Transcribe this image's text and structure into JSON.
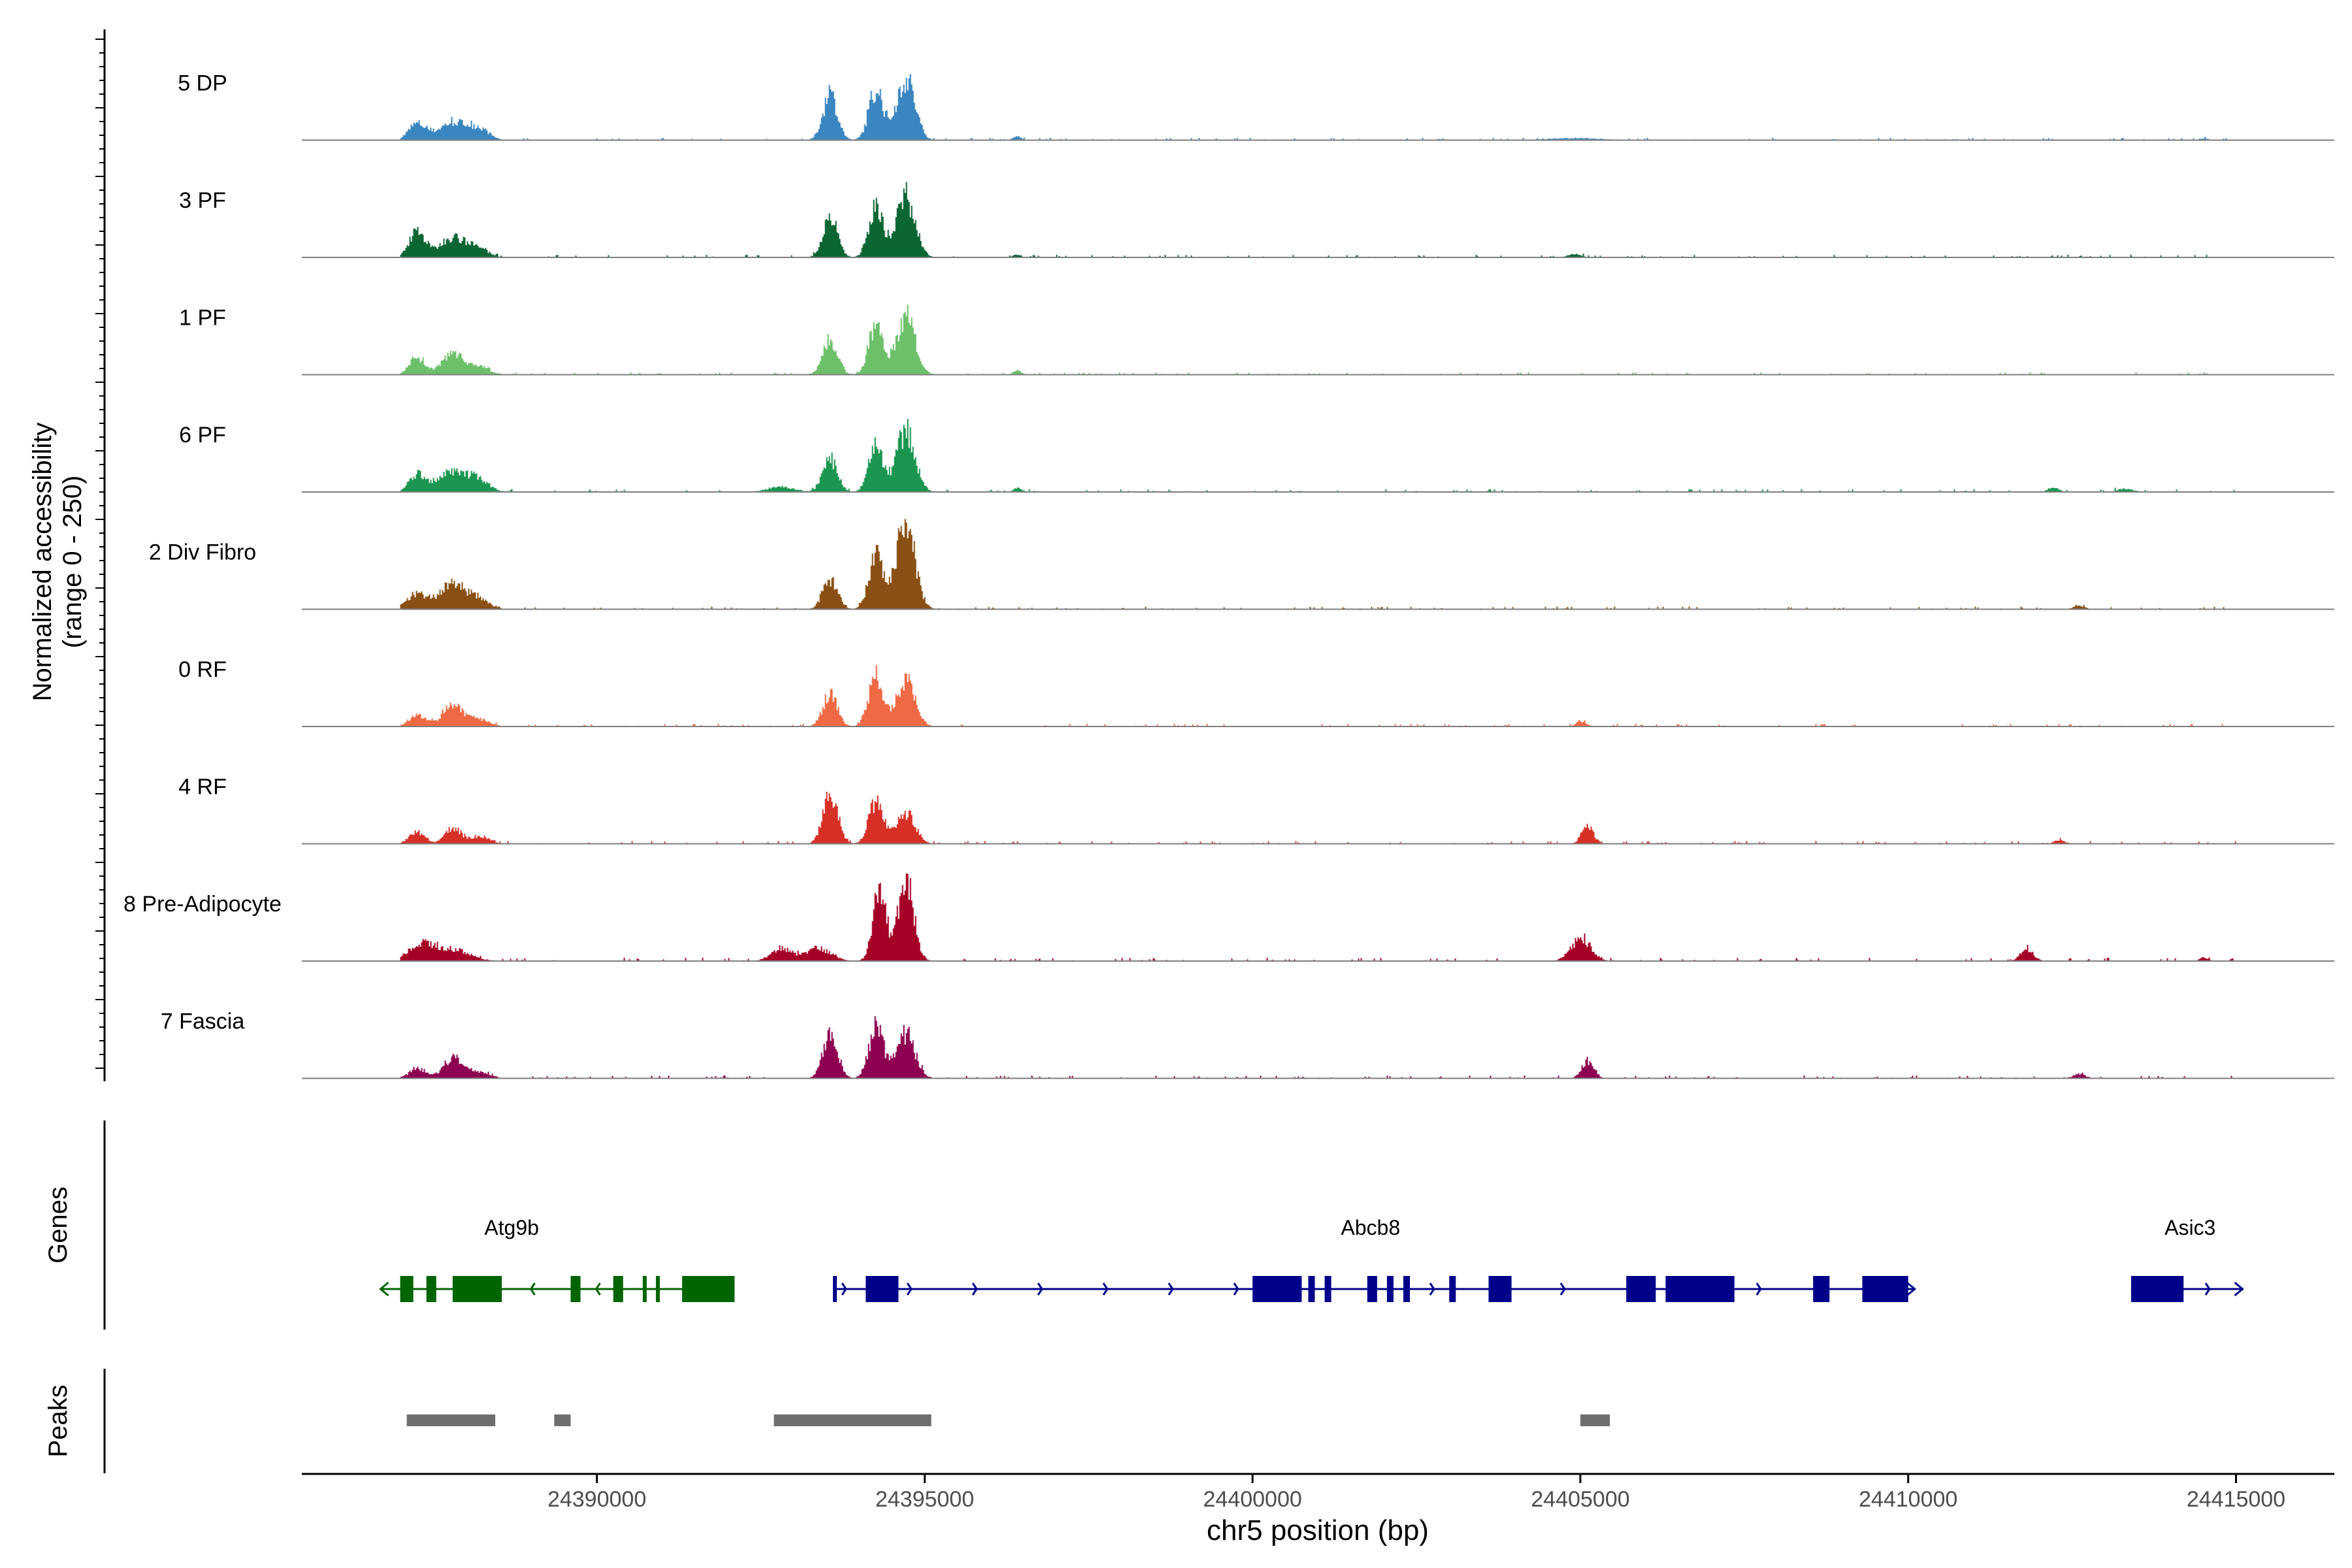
{
  "chart_data": {
    "type": "area",
    "title": "",
    "ylabel_line1": "Normalized accessibility",
    "ylabel_line2": "(range 0 - 250)",
    "y_range": [
      0,
      250
    ],
    "xlabel": "chr5 position (bp)",
    "xlim": [
      24385500,
      24416500
    ],
    "x_ticks": [
      24390000,
      24395000,
      24400000,
      24405000,
      24410000,
      24415000
    ],
    "x_tick_labels": [
      "24390000",
      "24395000",
      "24400000",
      "24405000",
      "24410000",
      "24415000"
    ],
    "genes_label": "Genes",
    "peaks_label": "Peaks",
    "tracks": [
      {
        "name": "5 DP",
        "color": "#3a86c0",
        "peaks": [
          [
            24387250,
            0.25,
            130
          ],
          [
            24387800,
            0.28,
            220
          ],
          [
            24388200,
            0.16,
            150
          ],
          [
            24393550,
            0.72,
            110
          ],
          [
            24394250,
            0.78,
            110
          ],
          [
            24394700,
            0.98,
            140
          ],
          [
            24396400,
            0.06,
            60
          ],
          [
            24404900,
            0.03,
            400
          ],
          [
            24414500,
            0.03,
            60
          ]
        ],
        "noise": 0.018
      },
      {
        "name": "3 PF",
        "color": "#0c6633",
        "peaks": [
          [
            24387250,
            0.42,
            120
          ],
          [
            24387800,
            0.32,
            200
          ],
          [
            24388200,
            0.12,
            150
          ],
          [
            24393550,
            0.65,
            110
          ],
          [
            24394250,
            0.8,
            110
          ],
          [
            24394700,
            0.97,
            140
          ],
          [
            24396400,
            0.04,
            60
          ],
          [
            24404900,
            0.05,
            100
          ]
        ],
        "noise": 0.02
      },
      {
        "name": "1 PF",
        "color": "#6cc06a",
        "peaks": [
          [
            24387250,
            0.28,
            120
          ],
          [
            24387800,
            0.36,
            160
          ],
          [
            24388200,
            0.12,
            150
          ],
          [
            24393550,
            0.55,
            110
          ],
          [
            24394250,
            0.78,
            110
          ],
          [
            24394700,
            0.92,
            140
          ],
          [
            24396400,
            0.07,
            60
          ]
        ],
        "noise": 0.018
      },
      {
        "name": "6 PF",
        "color": "#1b9650",
        "peaks": [
          [
            24387250,
            0.25,
            120
          ],
          [
            24387800,
            0.3,
            260
          ],
          [
            24388200,
            0.14,
            150
          ],
          [
            24392800,
            0.08,
            200
          ],
          [
            24393550,
            0.52,
            110
          ],
          [
            24394250,
            0.72,
            110
          ],
          [
            24394700,
            0.95,
            140
          ],
          [
            24396400,
            0.06,
            60
          ],
          [
            24412200,
            0.07,
            80
          ],
          [
            24413300,
            0.05,
            120
          ]
        ],
        "noise": 0.022
      },
      {
        "name": "2 Div Fibro",
        "color": "#8a5013",
        "peaks": [
          [
            24387250,
            0.25,
            150
          ],
          [
            24387800,
            0.4,
            200
          ],
          [
            24388200,
            0.14,
            150
          ],
          [
            24393550,
            0.48,
            110
          ],
          [
            24394250,
            0.84,
            110
          ],
          [
            24394700,
            1.36,
            140
          ],
          [
            24412600,
            0.06,
            80
          ]
        ],
        "noise": 0.02
      },
      {
        "name": "0 RF",
        "color": "#ef6a44",
        "peaks": [
          [
            24387250,
            0.2,
            120
          ],
          [
            24387800,
            0.32,
            160
          ],
          [
            24388200,
            0.1,
            150
          ],
          [
            24393550,
            0.52,
            110
          ],
          [
            24394250,
            0.8,
            110
          ],
          [
            24394700,
            0.72,
            140
          ],
          [
            24405000,
            0.08,
            80
          ]
        ],
        "noise": 0.02
      },
      {
        "name": "4 RF",
        "color": "#d63027",
        "peaks": [
          [
            24387250,
            0.18,
            120
          ],
          [
            24387800,
            0.24,
            120
          ],
          [
            24388200,
            0.12,
            150
          ],
          [
            24393550,
            0.82,
            110
          ],
          [
            24394250,
            0.66,
            110
          ],
          [
            24394700,
            0.5,
            140
          ],
          [
            24405100,
            0.28,
            90
          ],
          [
            24412300,
            0.06,
            80
          ]
        ],
        "noise": 0.02
      },
      {
        "name": "8 Pre-Adipocyte",
        "color": "#a50026",
        "peaks": [
          [
            24387300,
            0.25,
            200
          ],
          [
            24387800,
            0.18,
            250
          ],
          [
            24392800,
            0.2,
            150
          ],
          [
            24393350,
            0.2,
            200
          ],
          [
            24394300,
            1.1,
            100
          ],
          [
            24394700,
            1.3,
            120
          ],
          [
            24405000,
            0.35,
            150
          ],
          [
            24411800,
            0.18,
            100
          ],
          [
            24414500,
            0.06,
            60
          ]
        ],
        "noise": 0.025
      },
      {
        "name": "7 Fascia",
        "color": "#8e0152",
        "peaks": [
          [
            24387250,
            0.16,
            120
          ],
          [
            24387800,
            0.32,
            150
          ],
          [
            24388200,
            0.1,
            150
          ],
          [
            24393550,
            0.72,
            110
          ],
          [
            24394250,
            0.8,
            110
          ],
          [
            24394700,
            0.7,
            140
          ],
          [
            24405100,
            0.28,
            90
          ],
          [
            24412600,
            0.06,
            100
          ]
        ],
        "noise": 0.022
      }
    ],
    "genes": [
      {
        "name": "Atg9b",
        "strand": "-",
        "color": "#006400",
        "start": 24386800,
        "end": 24392100,
        "label_x": 24388700,
        "exons": [
          [
            24387000,
            24387200
          ],
          [
            24387400,
            24387550
          ],
          [
            24387800,
            24388550
          ],
          [
            24389600,
            24389750
          ],
          [
            24390250,
            24390400
          ],
          [
            24390700,
            24390750
          ],
          [
            24390900,
            24390950
          ],
          [
            24391300,
            24392100
          ]
        ]
      },
      {
        "name": "Abcb8",
        "strand": "+",
        "color": "#00008b",
        "start": 24393600,
        "end": 24410000,
        "label_x": 24401800,
        "exons": [
          [
            24393600,
            24393650
          ],
          [
            24394100,
            24394600
          ],
          [
            24400000,
            24400750
          ],
          [
            24400850,
            24400950
          ],
          [
            24401100,
            24401200
          ],
          [
            24401750,
            24401900
          ],
          [
            24402050,
            24402150
          ],
          [
            24402300,
            24402400
          ],
          [
            24403000,
            24403100
          ],
          [
            24403600,
            24403950
          ],
          [
            24405700,
            24406150
          ],
          [
            24406300,
            24407350
          ],
          [
            24408550,
            24408800
          ],
          [
            24409300,
            24410000
          ]
        ]
      },
      {
        "name": "Asic3",
        "strand": "+",
        "color": "#00008b",
        "start": 24413400,
        "end": 24415000,
        "label_x": 24414300,
        "exons": [
          [
            24413400,
            24414200
          ]
        ]
      }
    ],
    "peak_regions": [
      [
        24387100,
        24388450
      ],
      [
        24389350,
        24389600
      ],
      [
        24392700,
        24395100
      ],
      [
        24405000,
        24405450
      ]
    ]
  }
}
